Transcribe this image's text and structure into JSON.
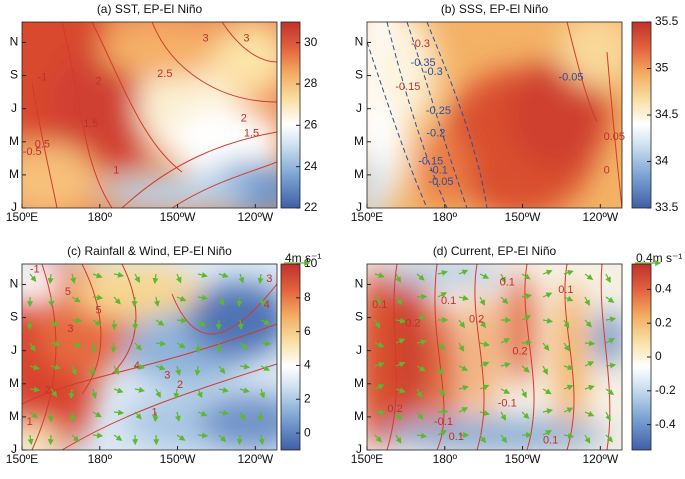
{
  "chart_data": [
    {
      "type": "heatmap",
      "title": "(a) SST, EP-El Niño",
      "categories": [
        "150ºE",
        "180º",
        "150ºW",
        "120ºW"
      ],
      "y_categories": [
        "J",
        "M",
        "M",
        "J",
        "S",
        "N"
      ],
      "clim": [
        22,
        31
      ],
      "cticks": [
        22,
        24,
        26,
        28,
        30
      ],
      "contour_labels": [
        "3",
        "3",
        "2.5",
        "2",
        "2",
        "1.5",
        "1.5",
        "1",
        "0.5",
        "-0.5",
        "-1"
      ]
    },
    {
      "type": "heatmap",
      "title": "(b) SSS, EP-El Niño",
      "categories": [
        "150ºE",
        "180º",
        "150ºW",
        "120ºW"
      ],
      "y_categories": [
        "J",
        "M",
        "M",
        "J",
        "S",
        "N"
      ],
      "clim": [
        33.5,
        35.5
      ],
      "cticks": [
        33.5,
        34,
        34.5,
        35,
        35.5
      ],
      "contour_labels": [
        "-0.35",
        "-0.3",
        "-0.25",
        "-0.2",
        "-0.15",
        "-0.1",
        "-0.05",
        "-0.05",
        "0",
        "0.05",
        "-0.15",
        "-0.3"
      ]
    },
    {
      "type": "heatmap",
      "title": "(c) Rainfall & Wind, EP-El Niño",
      "categories": [
        "150ºE",
        "180º",
        "150ºW",
        "120ºW"
      ],
      "y_categories": [
        "J",
        "M",
        "M",
        "J",
        "S",
        "N"
      ],
      "clim": [
        -1,
        10
      ],
      "cticks": [
        0,
        2,
        4,
        6,
        8,
        10
      ],
      "vector_label": "4m s⁻¹",
      "contour_labels": [
        "5",
        "5",
        "4",
        "4",
        "3",
        "3",
        "3",
        "2",
        "2",
        "1",
        "1",
        "-1"
      ]
    },
    {
      "type": "heatmap",
      "title": "(d) Current, EP-El Niño",
      "categories": [
        "150ºE",
        "180º",
        "150ºW",
        "120ºW"
      ],
      "y_categories": [
        "J",
        "M",
        "M",
        "J",
        "S",
        "N"
      ],
      "clim": [
        -0.55,
        0.55
      ],
      "cticks": [
        -0.4,
        -0.2,
        0,
        0.2,
        0.4
      ],
      "vector_label": "0.4m s⁻¹",
      "contour_labels": [
        "0.1",
        "0.2",
        "0.1",
        "0.2",
        "0.1",
        "0.2",
        "0.1",
        "-0.1",
        "0.1",
        "0.2",
        "-0.1",
        "0.1"
      ]
    }
  ]
}
